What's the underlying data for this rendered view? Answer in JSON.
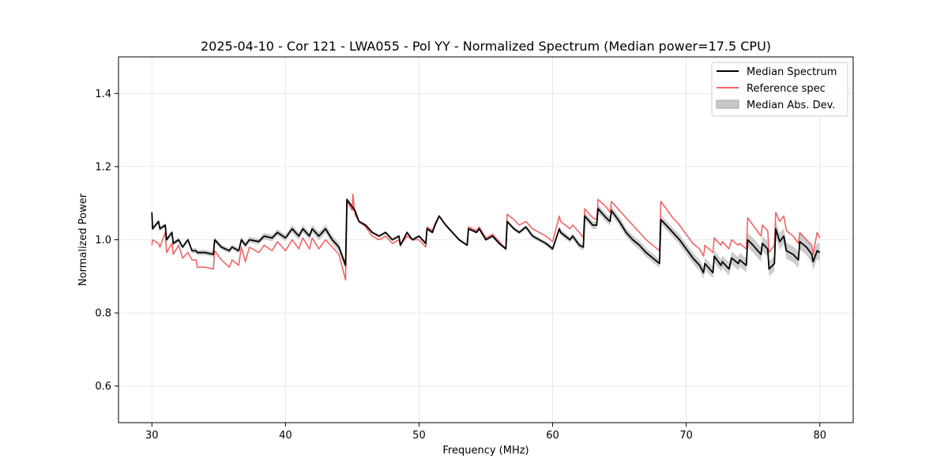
{
  "chart_data": {
    "type": "line",
    "title": "2025-04-10 - Cor 121 - LWA055 - Pol YY - Normalized Spectrum (Median power=17.5 CPU)",
    "xlabel": "Frequency (MHz)",
    "ylabel": "Normalized Power",
    "xlim": [
      27.5,
      82.5
    ],
    "ylim": [
      0.5,
      1.5
    ],
    "xticks": [
      30,
      40,
      50,
      60,
      70,
      80
    ],
    "xtick_labels": [
      "30",
      "40",
      "50",
      "60",
      "70",
      "80"
    ],
    "yticks": [
      0.6,
      0.8,
      1.0,
      1.2,
      1.4
    ],
    "ytick_labels": [
      "0.6",
      "0.8",
      "1.0",
      "1.2",
      "1.4"
    ],
    "grid": true,
    "legend_position": "top-right",
    "legend": [
      {
        "label": "Median Spectrum",
        "kind": "line",
        "color": "#000000"
      },
      {
        "label": "Reference spec",
        "kind": "line",
        "color": "#f06464"
      },
      {
        "label": "Median Abs. Dev.",
        "kind": "band",
        "color": "#c8c8c8"
      }
    ],
    "series": [
      {
        "name": "Median Spectrum",
        "color": "#000000",
        "x": [
          30.0,
          30.05,
          30.5,
          30.6,
          31.0,
          31.1,
          31.5,
          31.6,
          32.0,
          32.3,
          32.7,
          33.0,
          33.3,
          33.4,
          34.0,
          34.6,
          34.7,
          35.2,
          35.8,
          36.0,
          36.5,
          36.7,
          37.0,
          37.3,
          38.0,
          38.4,
          39.0,
          39.4,
          40.0,
          40.5,
          41.0,
          41.3,
          41.8,
          42.0,
          42.5,
          43.0,
          43.5,
          44.0,
          44.5,
          44.6,
          45.2,
          45.5,
          46.0,
          46.5,
          47.0,
          47.5,
          48.0,
          48.5,
          48.6,
          49.1,
          49.5,
          50.0,
          50.5,
          50.6,
          51.0,
          51.2,
          51.5,
          52.0,
          52.5,
          53.0,
          53.6,
          53.7,
          54.3,
          54.5,
          55.0,
          55.5,
          56.0,
          56.5,
          56.6,
          57.1,
          57.5,
          58.0,
          58.5,
          59.0,
          59.5,
          60.0,
          60.5,
          60.6,
          61.3,
          61.5,
          62.0,
          62.3,
          62.4,
          63.0,
          63.3,
          63.4,
          64.0,
          64.3,
          64.4,
          65.0,
          65.5,
          66.0,
          66.5,
          67.0,
          67.5,
          68.0,
          68.1,
          68.5,
          69.0,
          69.5,
          70.0,
          70.5,
          71.0,
          71.3,
          71.4,
          72.0,
          72.1,
          72.6,
          72.7,
          73.2,
          73.4,
          73.9,
          74.0,
          74.5,
          74.6,
          75.0,
          75.6,
          75.7,
          76.1,
          76.2,
          76.6,
          76.7,
          77.0,
          77.3,
          77.5,
          78.0,
          78.4,
          78.5,
          79.0,
          79.4,
          79.5,
          79.8,
          80.0
        ],
        "y": [
          1.075,
          1.03,
          1.05,
          1.03,
          1.04,
          1.0,
          1.02,
          0.99,
          1.0,
          0.98,
          1.0,
          0.97,
          0.97,
          0.965,
          0.965,
          0.96,
          1.0,
          0.98,
          0.97,
          0.98,
          0.97,
          1.0,
          0.985,
          1.0,
          0.995,
          1.01,
          1.005,
          1.02,
          1.005,
          1.03,
          1.01,
          1.03,
          1.01,
          1.03,
          1.01,
          1.03,
          1.0,
          0.98,
          0.93,
          1.11,
          1.08,
          1.05,
          1.04,
          1.02,
          1.01,
          1.02,
          1.0,
          1.01,
          0.985,
          1.02,
          1.0,
          1.01,
          0.99,
          1.03,
          1.02,
          1.04,
          1.065,
          1.04,
          1.02,
          1.0,
          0.985,
          1.03,
          1.02,
          1.03,
          1.0,
          1.01,
          0.99,
          0.975,
          1.05,
          1.03,
          1.02,
          1.035,
          1.01,
          1.0,
          0.99,
          0.975,
          1.03,
          1.02,
          1.0,
          1.01,
          0.985,
          0.98,
          1.065,
          1.04,
          1.04,
          1.085,
          1.06,
          1.05,
          1.08,
          1.05,
          1.02,
          1.0,
          0.985,
          0.965,
          0.95,
          0.935,
          1.055,
          1.04,
          1.02,
          1.0,
          0.975,
          0.95,
          0.93,
          0.91,
          0.935,
          0.91,
          0.955,
          0.93,
          0.94,
          0.92,
          0.95,
          0.935,
          0.945,
          0.93,
          1.0,
          0.985,
          0.96,
          0.99,
          0.975,
          0.92,
          0.935,
          1.03,
          0.995,
          1.01,
          0.97,
          0.96,
          0.945,
          0.995,
          0.98,
          0.96,
          0.94,
          0.97,
          0.965
        ]
      },
      {
        "name": "Reference spec",
        "color": "#f06464",
        "x": [
          30.0,
          30.05,
          30.5,
          30.6,
          31.0,
          31.1,
          31.5,
          31.6,
          32.0,
          32.3,
          32.7,
          33.0,
          33.3,
          33.4,
          34.0,
          34.6,
          34.7,
          35.2,
          35.8,
          36.0,
          36.5,
          36.7,
          37.0,
          37.3,
          38.0,
          38.4,
          39.0,
          39.4,
          40.0,
          40.5,
          41.0,
          41.3,
          41.8,
          42.0,
          42.5,
          43.0,
          43.5,
          44.0,
          44.5,
          44.6,
          45.0,
          45.05,
          45.2,
          45.5,
          46.0,
          46.5,
          47.0,
          47.5,
          48.0,
          48.5,
          48.6,
          49.1,
          49.5,
          50.0,
          50.5,
          50.6,
          51.0,
          51.2,
          51.5,
          52.0,
          52.5,
          53.0,
          53.6,
          53.7,
          54.3,
          54.5,
          55.0,
          55.5,
          56.0,
          56.5,
          56.6,
          57.1,
          57.5,
          58.0,
          58.5,
          59.0,
          59.5,
          60.0,
          60.5,
          60.6,
          61.3,
          61.5,
          62.0,
          62.3,
          62.4,
          63.0,
          63.3,
          63.4,
          64.0,
          64.3,
          64.4,
          65.0,
          65.5,
          66.0,
          66.5,
          67.0,
          67.5,
          68.0,
          68.1,
          68.5,
          69.0,
          69.5,
          70.0,
          70.5,
          71.0,
          71.3,
          71.4,
          72.0,
          72.1,
          72.6,
          72.7,
          73.2,
          73.4,
          73.9,
          74.0,
          74.5,
          74.6,
          75.0,
          75.6,
          75.7,
          76.1,
          76.2,
          76.6,
          76.7,
          77.0,
          77.3,
          77.5,
          78.0,
          78.4,
          78.5,
          79.0,
          79.4,
          79.5,
          79.8,
          80.0
        ],
        "y": [
          0.985,
          1.0,
          0.99,
          0.98,
          1.02,
          0.965,
          0.99,
          0.96,
          0.985,
          0.95,
          0.965,
          0.945,
          0.945,
          0.925,
          0.925,
          0.92,
          0.97,
          0.945,
          0.925,
          0.945,
          0.93,
          0.98,
          0.94,
          0.98,
          0.965,
          0.985,
          0.97,
          0.995,
          0.97,
          1.0,
          0.975,
          1.005,
          0.975,
          1.005,
          0.975,
          1.0,
          0.98,
          0.96,
          0.89,
          1.105,
          1.08,
          1.125,
          1.07,
          1.05,
          1.035,
          1.01,
          1.0,
          1.01,
          0.99,
          1.0,
          0.985,
          1.01,
          1.0,
          1.0,
          0.98,
          1.035,
          1.025,
          1.045,
          1.065,
          1.04,
          1.02,
          1.0,
          0.985,
          1.035,
          1.025,
          1.035,
          1.005,
          1.015,
          0.995,
          0.975,
          1.07,
          1.055,
          1.04,
          1.05,
          1.03,
          1.02,
          1.01,
          0.995,
          1.065,
          1.05,
          1.03,
          1.04,
          1.02,
          1.005,
          1.085,
          1.06,
          1.055,
          1.11,
          1.09,
          1.075,
          1.105,
          1.08,
          1.06,
          1.04,
          1.02,
          1.0,
          0.985,
          0.97,
          1.105,
          1.085,
          1.06,
          1.04,
          1.015,
          0.99,
          0.975,
          0.955,
          0.985,
          0.965,
          1.005,
          0.985,
          0.995,
          0.975,
          1.0,
          0.985,
          0.99,
          0.975,
          1.06,
          1.04,
          1.01,
          1.04,
          1.025,
          0.965,
          0.985,
          1.075,
          1.05,
          1.065,
          1.025,
          1.01,
          0.99,
          1.02,
          1.0,
          0.985,
          0.96,
          1.02,
          1.005
        ]
      }
    ],
    "band": {
      "name": "Median Abs. Dev.",
      "color": "#c8c8c8",
      "x": [
        30.0,
        30.05,
        30.5,
        30.6,
        31.0,
        31.1,
        31.5,
        31.6,
        32.0,
        32.3,
        32.7,
        33.0,
        33.3,
        33.4,
        34.0,
        34.6,
        34.7,
        35.2,
        35.8,
        36.0,
        36.5,
        36.7,
        37.0,
        37.3,
        38.0,
        38.4,
        39.0,
        39.4,
        40.0,
        40.5,
        41.0,
        41.3,
        41.8,
        42.0,
        42.5,
        43.0,
        43.5,
        44.0,
        44.5,
        44.6,
        45.2,
        45.5,
        46.0,
        46.5,
        47.0,
        47.5,
        48.0,
        48.5,
        48.6,
        49.1,
        49.5,
        50.0,
        50.5,
        50.6,
        51.0,
        51.2,
        51.5,
        52.0,
        52.5,
        53.0,
        53.6,
        53.7,
        54.3,
        54.5,
        55.0,
        55.5,
        56.0,
        56.5,
        56.6,
        57.1,
        57.5,
        58.0,
        58.5,
        59.0,
        59.5,
        60.0,
        60.5,
        60.6,
        61.3,
        61.5,
        62.0,
        62.3,
        62.4,
        63.0,
        63.3,
        63.4,
        64.0,
        64.3,
        64.4,
        65.0,
        65.5,
        66.0,
        66.5,
        67.0,
        67.5,
        68.0,
        68.1,
        68.5,
        69.0,
        69.5,
        70.0,
        70.5,
        71.0,
        71.3,
        71.4,
        72.0,
        72.1,
        72.6,
        72.7,
        73.2,
        73.4,
        73.9,
        74.0,
        74.5,
        74.6,
        75.0,
        75.6,
        75.7,
        76.1,
        76.2,
        76.6,
        76.7,
        77.0,
        77.3,
        77.5,
        78.0,
        78.4,
        78.5,
        79.0,
        79.4,
        79.5,
        79.8,
        80.0
      ],
      "dev": [
        0.008,
        0.006,
        0.006,
        0.006,
        0.006,
        0.006,
        0.006,
        0.006,
        0.006,
        0.006,
        0.006,
        0.007,
        0.007,
        0.007,
        0.007,
        0.007,
        0.007,
        0.007,
        0.007,
        0.007,
        0.007,
        0.008,
        0.008,
        0.008,
        0.008,
        0.009,
        0.009,
        0.009,
        0.009,
        0.01,
        0.01,
        0.01,
        0.01,
        0.011,
        0.011,
        0.011,
        0.012,
        0.012,
        0.012,
        0.006,
        0.005,
        0.004,
        0.004,
        0.004,
        0.004,
        0.004,
        0.004,
        0.004,
        0.004,
        0.004,
        0.004,
        0.004,
        0.004,
        0.004,
        0.004,
        0.004,
        0.004,
        0.004,
        0.004,
        0.004,
        0.004,
        0.004,
        0.004,
        0.004,
        0.004,
        0.004,
        0.004,
        0.004,
        0.005,
        0.005,
        0.006,
        0.006,
        0.006,
        0.006,
        0.006,
        0.007,
        0.007,
        0.008,
        0.008,
        0.008,
        0.009,
        0.009,
        0.01,
        0.01,
        0.011,
        0.011,
        0.011,
        0.012,
        0.012,
        0.012,
        0.012,
        0.012,
        0.012,
        0.012,
        0.012,
        0.012,
        0.012,
        0.013,
        0.013,
        0.014,
        0.014,
        0.015,
        0.015,
        0.016,
        0.016,
        0.016,
        0.017,
        0.017,
        0.017,
        0.018,
        0.018,
        0.018,
        0.019,
        0.019,
        0.019,
        0.02,
        0.02,
        0.02,
        0.021,
        0.021,
        0.021,
        0.022,
        0.022,
        0.022,
        0.022,
        0.022,
        0.022,
        0.022,
        0.022,
        0.023,
        0.023,
        0.023,
        0.023
      ]
    }
  }
}
